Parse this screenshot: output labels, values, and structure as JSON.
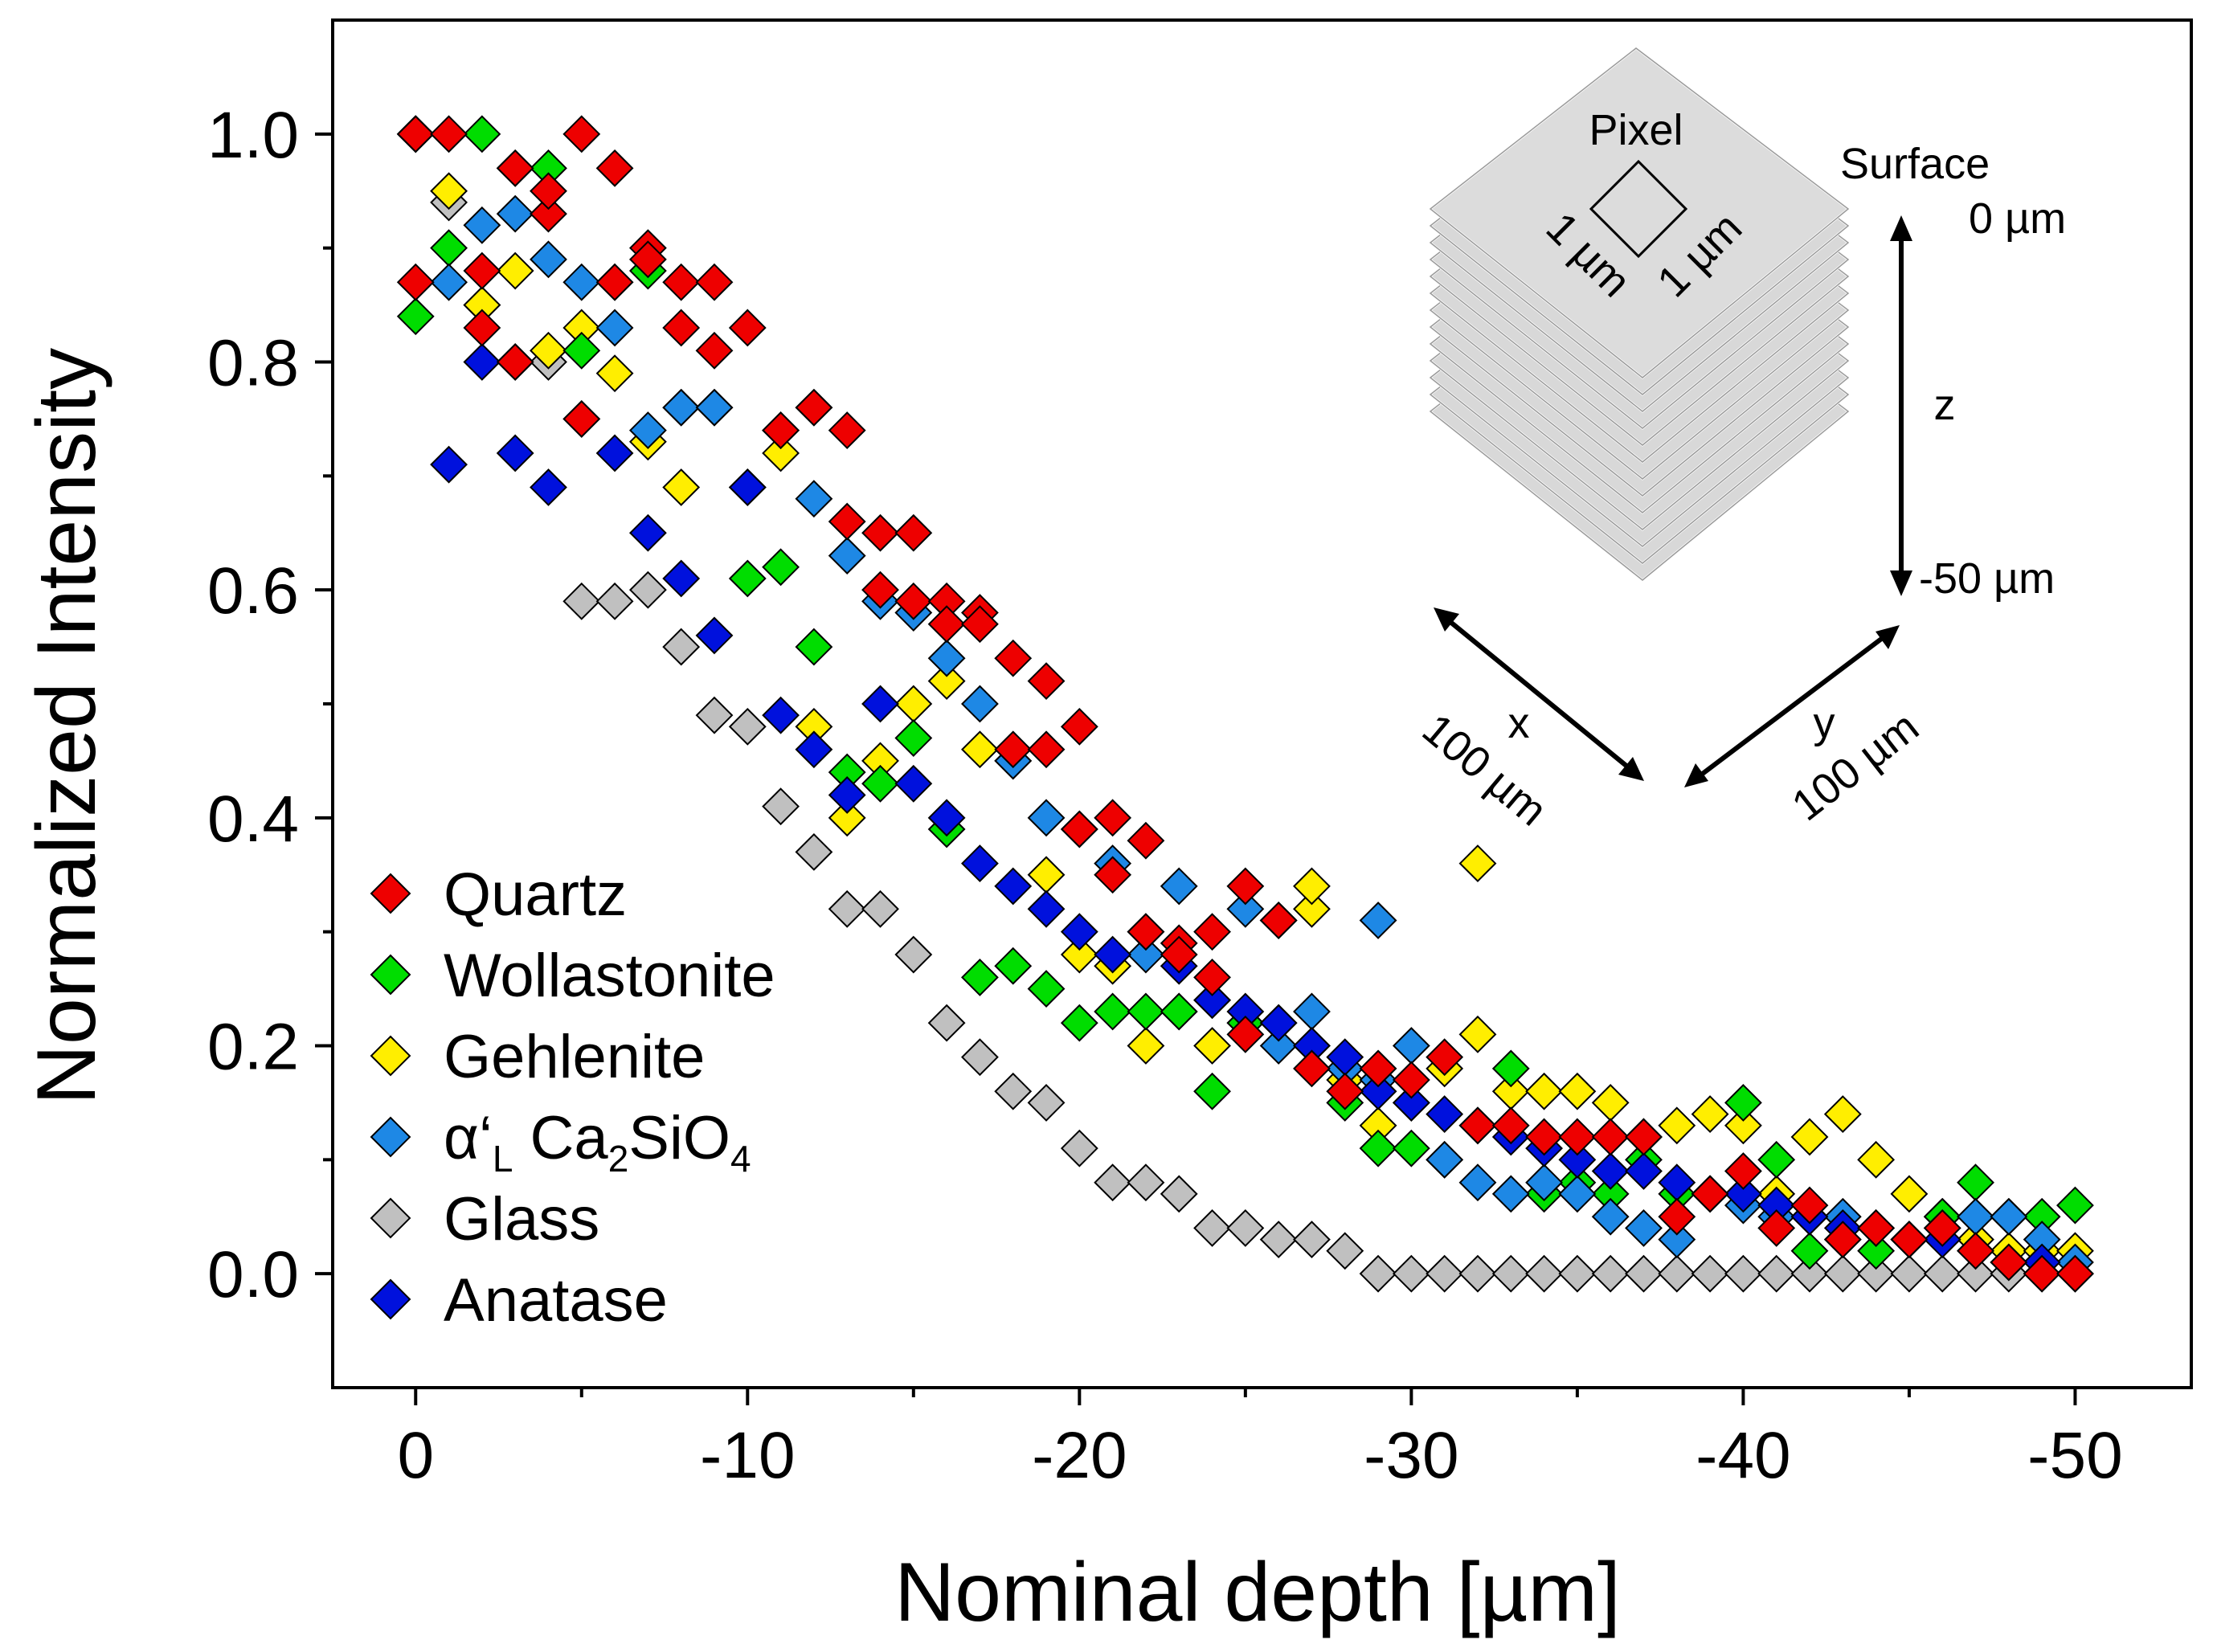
{
  "chart_data": {
    "type": "scatter",
    "title": "",
    "xlabel": "Nominal depth [µm]",
    "ylabel": "Normalized Intensity",
    "xlim": [
      2.5,
      -53.5
    ],
    "ylim": [
      -0.1,
      1.1
    ],
    "xticks": [
      0,
      -10,
      -20,
      -30,
      -40,
      -50
    ],
    "xtick_labels": [
      "0",
      "-10",
      "-20",
      "-30",
      "-40",
      "-50"
    ],
    "yticks": [
      0.0,
      0.2,
      0.4,
      0.6,
      0.8,
      1.0
    ],
    "ytick_labels": [
      "0.0",
      "0.2",
      "0.4",
      "0.6",
      "0.8",
      "1.0"
    ],
    "grid": false,
    "legend_position": "bottom-left",
    "marker": "diamond",
    "series": [
      {
        "name": "Glass",
        "label_main": "Glass",
        "color": "#c0c0c0",
        "x": [
          0,
          -1,
          -2,
          -3,
          -4,
          -5,
          -6,
          -7,
          -8,
          -9,
          -10,
          -11,
          -12,
          -13,
          -14,
          -15,
          -16,
          -17,
          -18,
          -19,
          -20,
          -21,
          -22,
          -23,
          -24,
          -25,
          -26,
          -27,
          -28,
          -29,
          -30,
          -31,
          -32,
          -33,
          -34,
          -35,
          -36,
          -37,
          -38,
          -39,
          -40,
          -41,
          -42,
          -43,
          -44,
          -45,
          -46,
          -47,
          -48,
          -49,
          -50
        ],
        "y": [
          1.0,
          0.94,
          0.85,
          0.8,
          0.8,
          0.59,
          0.59,
          0.6,
          0.55,
          0.49,
          0.48,
          0.41,
          0.37,
          0.32,
          0.32,
          0.28,
          0.22,
          0.19,
          0.16,
          0.15,
          0.11,
          0.08,
          0.08,
          0.07,
          0.04,
          0.04,
          0.03,
          0.03,
          0.02,
          0,
          0,
          0,
          0,
          0,
          0,
          0,
          0,
          0,
          0,
          0,
          0,
          0,
          0,
          0,
          0,
          0,
          0,
          0,
          0,
          0,
          0
        ]
      },
      {
        "name": "Gehlenite",
        "label_main": "Gehlenite",
        "color": "#ffee00",
        "x": [
          0,
          -1,
          -2,
          -3,
          -4,
          -5,
          -6,
          -7,
          -8,
          -9,
          -10,
          -11,
          -12,
          -13,
          -14,
          -15,
          -16,
          -17,
          -18,
          -19,
          -20,
          -21,
          -22,
          -23,
          -24,
          -25,
          -26,
          -27,
          -28,
          -29,
          -30,
          -31,
          -32,
          -33,
          -34,
          -35,
          -36,
          -37,
          -38,
          -39,
          -40,
          -41,
          -42,
          -43,
          -44,
          -45,
          -46,
          -47,
          -48,
          -49,
          -50,
          -27,
          -32
        ],
        "y": [
          1.0,
          0.95,
          0.85,
          0.88,
          0.81,
          0.83,
          0.79,
          0.73,
          0.69,
          0.76,
          0.69,
          0.72,
          0.48,
          0.4,
          0.45,
          0.5,
          0.52,
          0.46,
          0.45,
          0.35,
          0.28,
          0.27,
          0.2,
          0.23,
          0.2,
          0.22,
          0.31,
          0.32,
          0.17,
          0.13,
          0.15,
          0.18,
          0.21,
          0.16,
          0.16,
          0.16,
          0.15,
          0.12,
          0.13,
          0.14,
          0.13,
          0.07,
          0.12,
          0.14,
          0.1,
          0.07,
          0.05,
          0.03,
          0.02,
          0.02,
          0.02,
          0.34,
          0.36
        ]
      },
      {
        "name": "Wollastonite",
        "label_main": "Wollastonite",
        "color": "#00dd00",
        "x": [
          0,
          -1,
          -2,
          -3,
          -4,
          -5,
          -6,
          -7,
          -8,
          -9,
          -10,
          -11,
          -12,
          -13,
          -14,
          -15,
          -16,
          -17,
          -18,
          -19,
          -20,
          -21,
          -22,
          -23,
          -24,
          -25,
          -26,
          -27,
          -28,
          -29,
          -30,
          -31,
          -32,
          -33,
          -34,
          -35,
          -36,
          -37,
          -38,
          -39,
          -40,
          -41,
          -42,
          -43,
          -44,
          -45,
          -46,
          -47,
          -48,
          -49,
          -50
        ],
        "y": [
          0.84,
          0.9,
          1.0,
          0.97,
          0.97,
          0.81,
          0.87,
          0.88,
          0.76,
          0.76,
          0.61,
          0.62,
          0.55,
          0.44,
          0.43,
          0.47,
          0.39,
          0.26,
          0.27,
          0.25,
          0.22,
          0.23,
          0.23,
          0.23,
          0.16,
          0.22,
          0.22,
          0.2,
          0.15,
          0.11,
          0.11,
          0.1,
          0.13,
          0.18,
          0.07,
          0.08,
          0.07,
          0.1,
          0.07,
          0.07,
          0.15,
          0.1,
          0.02,
          0.03,
          0.02,
          0.03,
          0.05,
          0.08,
          0.05,
          0.05,
          0.06
        ]
      },
      {
        "name": "α'L Ca2SiO4",
        "label_main": "α‘",
        "label_sub1": "L",
        "label_mid": " Ca",
        "label_sub2": "2",
        "label_mid2": "SiO",
        "label_sub3": "4",
        "color": "#1e88e5",
        "x": [
          0,
          -1,
          -2,
          -3,
          -4,
          -5,
          -6,
          -7,
          -8,
          -9,
          -10,
          -11,
          -12,
          -13,
          -14,
          -15,
          -16,
          -17,
          -18,
          -19,
          -20,
          -21,
          -22,
          -23,
          -24,
          -25,
          -26,
          -27,
          -28,
          -29,
          -30,
          -31,
          -32,
          -33,
          -34,
          -35,
          -36,
          -37,
          -38,
          -39,
          -40,
          -41,
          -42,
          -43,
          -44,
          -45,
          -46,
          -47,
          -48,
          -49,
          -50,
          -29
        ],
        "y": [
          1.0,
          0.87,
          0.92,
          0.93,
          0.89,
          0.87,
          0.83,
          0.74,
          0.76,
          0.76,
          0.69,
          0.74,
          0.68,
          0.63,
          0.59,
          0.58,
          0.54,
          0.5,
          0.45,
          0.4,
          0.39,
          0.36,
          0.28,
          0.34,
          0.24,
          0.32,
          0.2,
          0.23,
          0.18,
          0.17,
          0.2,
          0.1,
          0.08,
          0.07,
          0.08,
          0.07,
          0.05,
          0.04,
          0.03,
          0.07,
          0.06,
          0.05,
          0.05,
          0.05,
          0.04,
          0.03,
          0.04,
          0.05,
          0.05,
          0.03,
          0.01,
          0.31
        ]
      },
      {
        "name": "Anatase",
        "label_main": "Anatase",
        "color": "#0011dd",
        "x": [
          0,
          -1,
          -2,
          -3,
          -4,
          -5,
          -6,
          -7,
          -8,
          -9,
          -10,
          -11,
          -12,
          -13,
          -14,
          -15,
          -16,
          -17,
          -18,
          -19,
          -20,
          -21,
          -22,
          -23,
          -24,
          -25,
          -26,
          -27,
          -28,
          -29,
          -30,
          -31,
          -32,
          -33,
          -34,
          -35,
          -36,
          -37,
          -38,
          -39,
          -40,
          -41,
          -42,
          -43,
          -44,
          -45,
          -46,
          -47,
          -48,
          -49,
          -50
        ],
        "y": [
          1.0,
          0.71,
          0.8,
          0.72,
          0.69,
          0.75,
          0.72,
          0.65,
          0.61,
          0.56,
          0.69,
          0.49,
          0.46,
          0.42,
          0.5,
          0.43,
          0.4,
          0.36,
          0.34,
          0.32,
          0.3,
          0.28,
          0.3,
          0.27,
          0.24,
          0.23,
          0.22,
          0.2,
          0.19,
          0.16,
          0.15,
          0.14,
          0.13,
          0.12,
          0.11,
          0.1,
          0.09,
          0.09,
          0.08,
          0.07,
          0.07,
          0.06,
          0.05,
          0.04,
          0.04,
          0.03,
          0.03,
          0.02,
          0.01,
          0.01,
          0.0
        ]
      },
      {
        "name": "Quartz",
        "label_main": "Quartz",
        "color": "#ee0000",
        "x": [
          0,
          -1,
          -2,
          -3,
          -4,
          -5,
          -6,
          -7,
          -8,
          -9,
          -10,
          -11,
          -12,
          -13,
          -14,
          -15,
          -16,
          -17,
          -18,
          -19,
          -20,
          -21,
          -22,
          -23,
          -24,
          -25,
          -26,
          -27,
          -28,
          -29,
          -30,
          -31,
          -32,
          -33,
          -34,
          -35,
          -36,
          -37,
          -38,
          -39,
          -40,
          -41,
          -42,
          -43,
          -44,
          -45,
          -46,
          -47,
          -48,
          -49,
          -50,
          0,
          -2,
          -3,
          -4,
          -5,
          -6,
          -7,
          -8,
          -9,
          -11,
          -12,
          -13,
          -14,
          -15,
          -16,
          -17,
          -18,
          -19,
          -20,
          -21,
          -22,
          -23,
          -24,
          -25,
          -26
        ],
        "y": [
          1.0,
          1.0,
          0.88,
          0.8,
          0.93,
          1.0,
          0.97,
          0.9,
          0.87,
          0.87,
          0.83,
          0.74,
          0.76,
          0.66,
          0.65,
          0.59,
          0.59,
          0.58,
          0.54,
          0.52,
          0.48,
          0.4,
          0.38,
          0.29,
          0.3,
          0.34,
          0.31,
          0.18,
          0.16,
          0.18,
          0.17,
          0.19,
          0.13,
          0.13,
          0.12,
          0.12,
          0.12,
          0.12,
          0.05,
          0.07,
          0.09,
          0.04,
          0.06,
          0.03,
          0.04,
          0.03,
          0.04,
          0.02,
          0.01,
          0.0,
          0.0,
          0.87,
          0.83,
          0.97,
          0.95,
          0.75,
          0.87,
          0.89,
          0.83,
          0.81,
          0.74,
          0.76,
          0.74,
          0.6,
          0.65,
          0.57,
          0.57,
          0.46,
          0.46,
          0.39,
          0.35,
          0.3,
          0.28,
          0.26,
          0.21,
          0.31
        ]
      }
    ],
    "legend_order": [
      "Quartz",
      "Wollastonite",
      "Gehlenite",
      "α'L Ca2SiO4",
      "Glass",
      "Anatase"
    ],
    "inset": {
      "pixel_label": "Pixel",
      "pixel_side_a": "1 µm",
      "pixel_side_b": "1 µm",
      "surface_label": "Surface",
      "top_depth": "0 µm",
      "axis_z": "z",
      "bottom_depth": "-50 µm",
      "axis_x": "x",
      "x_size": "100 µm",
      "axis_y": "y",
      "y_size": "100 µm"
    }
  }
}
